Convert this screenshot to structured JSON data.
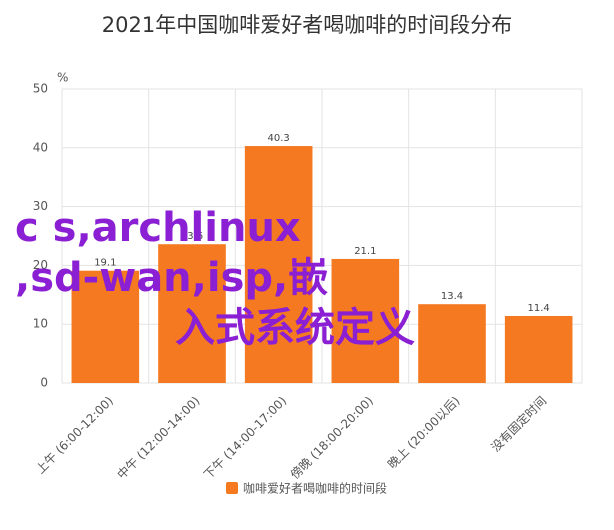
{
  "chart_data": {
    "type": "bar",
    "title": "2021年中国咖啡爱好者喝咖啡的时间段分布",
    "y_unit": "%",
    "categories": [
      "上午 (6:00-12:00)",
      "中午 (12:00-14:00)",
      "下午 (14:00-17:00)",
      "傍晚 (18:00-20:00)",
      "晚上 (20:00以后)",
      "没有固定时间"
    ],
    "series": [
      {
        "name": "咖啡爱好者喝咖啡的时间段",
        "color": "#f47920",
        "values": [
          19.1,
          23.6,
          40.3,
          21.1,
          13.4,
          11.4
        ]
      }
    ],
    "ylim": [
      0,
      50
    ],
    "yticks": [
      0,
      10,
      20,
      30,
      40,
      50
    ],
    "grid": true,
    "legend": "bottom",
    "annotation": [
      "c s,archlinux",
      ",sd-wan,isp,嵌",
      "入式系统定义"
    ]
  }
}
